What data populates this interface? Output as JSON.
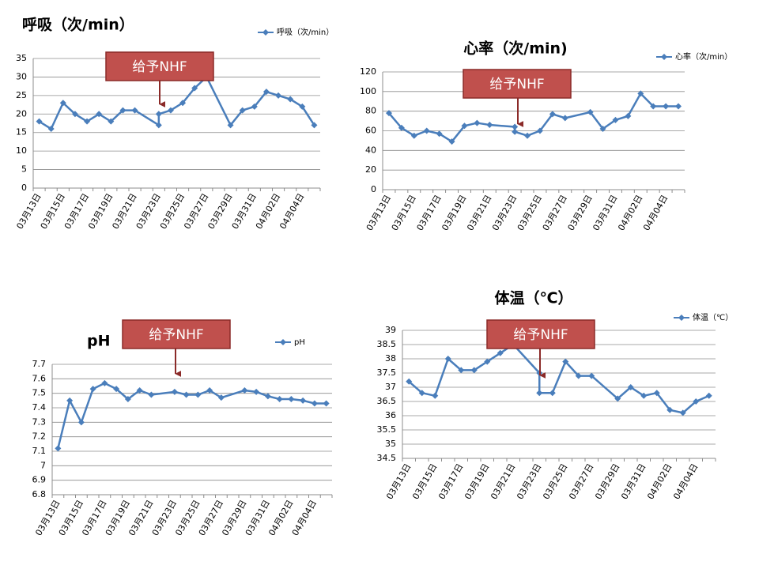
{
  "chart_data": [
    {
      "type": "line",
      "title": "呼吸（次/min）",
      "annotation": "给予NHF",
      "x": [
        "03月13日",
        "03月14日",
        "03月15日",
        "03月16日",
        "03月17日",
        "03月18日",
        "03月19日",
        "03月20日",
        "03月21日",
        "03月23日",
        "03月23日",
        "03月24日",
        "03月25日",
        "03月26日",
        "03月27日",
        "03月29日",
        "03月30日",
        "03月31日",
        "04月01日",
        "04月02日",
        "04月03日",
        "04月04日",
        "04月05日"
      ],
      "xlim": [
        "03月13日",
        "04月05日"
      ],
      "xticks": [
        "03月13日",
        "03月15日",
        "03月17日",
        "03月19日",
        "03月21日",
        "03月23日",
        "03月25日",
        "03月27日",
        "03月29日",
        "03月31日",
        "04月02日",
        "04月04日"
      ],
      "series": [
        {
          "name": "呼吸（次/min）",
          "color": "#4a7ebb",
          "values": [
            18,
            16,
            23,
            20,
            18,
            20,
            18,
            21,
            21,
            17,
            20,
            21,
            23,
            27,
            30,
            17,
            21,
            22,
            26,
            25,
            24,
            22,
            17
          ]
        }
      ],
      "ylim": [
        0,
        35
      ],
      "yticks": [
        0,
        5,
        10,
        15,
        20,
        25,
        30,
        35
      ],
      "grid": true,
      "legend": "top-right"
    },
    {
      "type": "line",
      "title": "心率（次/min)",
      "annotation": "给予NHF",
      "x": [
        "03月13日",
        "03月14日",
        "03月15日",
        "03月16日",
        "03月17日",
        "03月18日",
        "03月19日",
        "03月20日",
        "03月21日",
        "03月23日",
        "03月23日",
        "03月24日",
        "03月25日",
        "03月26日",
        "03月27日",
        "03月29日",
        "03月30日",
        "03月31日",
        "04月01日",
        "04月02日",
        "04月03日",
        "04月04日",
        "04月05日"
      ],
      "xlim": [
        "03月13日",
        "04月05日"
      ],
      "xticks": [
        "03月13日",
        "03月15日",
        "03月17日",
        "03月19日",
        "03月21日",
        "03月23日",
        "03月25日",
        "03月27日",
        "03月29日",
        "03月31日",
        "04月02日",
        "04月04日"
      ],
      "series": [
        {
          "name": "心率（次/min）",
          "color": "#4a7ebb",
          "values": [
            78,
            63,
            55,
            60,
            57,
            49,
            65,
            68,
            66,
            64,
            59,
            55,
            60,
            77,
            73,
            79,
            62,
            71,
            75,
            98,
            85,
            85,
            85
          ]
        }
      ],
      "ylim": [
        0,
        120
      ],
      "yticks": [
        0,
        20,
        40,
        60,
        80,
        100,
        120
      ],
      "grid": true,
      "legend": "top-right"
    },
    {
      "type": "line",
      "title": "pH",
      "annotation": "给予NHF",
      "x": [
        "03月13日",
        "03月14日",
        "03月15日",
        "03月16日",
        "03月17日",
        "03月18日",
        "03月19日",
        "03月20日",
        "03月21日",
        "03月23日",
        "03月24日",
        "03月25日",
        "03月26日",
        "03月27日",
        "03月29日",
        "03月30日",
        "03月31日",
        "04月01日",
        "04月02日",
        "04月03日",
        "04月04日",
        "04月05日"
      ],
      "xlim": [
        "03月13日",
        "04月05日"
      ],
      "xticks": [
        "03月13日",
        "03月15日",
        "03月17日",
        "03月19日",
        "03月21日",
        "03月23日",
        "03月25日",
        "03月27日",
        "03月29日",
        "03月31日",
        "04月02日",
        "04月04日"
      ],
      "series": [
        {
          "name": "pH",
          "color": "#4a7ebb",
          "values": [
            7.12,
            7.45,
            7.3,
            7.53,
            7.57,
            7.53,
            7.46,
            7.52,
            7.49,
            7.51,
            7.49,
            7.49,
            7.52,
            7.47,
            7.52,
            7.51,
            7.48,
            7.46,
            7.46,
            7.45,
            7.43,
            7.43
          ]
        }
      ],
      "ylim": [
        6.8,
        7.7
      ],
      "yticks": [
        6.8,
        6.9,
        7,
        7.1,
        7.2,
        7.3,
        7.4,
        7.5,
        7.6,
        7.7
      ],
      "grid": true,
      "legend": "top-right"
    },
    {
      "type": "line",
      "title": "体温（℃）",
      "annotation": "给予NHF",
      "x": [
        "03月13日",
        "03月14日",
        "03月15日",
        "03月16日",
        "03月17日",
        "03月18日",
        "03月19日",
        "03月20日",
        "03月21日",
        "03月23日",
        "03月23日",
        "03月24日",
        "03月25日",
        "03月26日",
        "03月27日",
        "03月29日",
        "03月30日",
        "03月31日",
        "04月01日",
        "04月02日",
        "04月03日",
        "04月04日",
        "04月05日"
      ],
      "xlim": [
        "03月13日",
        "04月05日"
      ],
      "xticks": [
        "03月13日",
        "03月15日",
        "03月17日",
        "03月19日",
        "03月21日",
        "03月23日",
        "03月25日",
        "03月27日",
        "03月29日",
        "03月31日",
        "04月02日",
        "04月04日"
      ],
      "series": [
        {
          "name": "体温（℃）",
          "color": "#4a7ebb",
          "values": [
            37.2,
            36.8,
            36.7,
            38.0,
            37.6,
            37.6,
            37.9,
            38.2,
            38.5,
            37.5,
            36.8,
            36.8,
            37.9,
            37.4,
            37.4,
            36.6,
            37.0,
            36.7,
            36.8,
            36.2,
            36.1,
            36.5,
            36.7
          ]
        }
      ],
      "ylim": [
        34.5,
        39
      ],
      "yticks": [
        34.5,
        35,
        35.5,
        36,
        36.5,
        37,
        37.5,
        38,
        38.5,
        39
      ],
      "grid": true,
      "legend": "top-right"
    }
  ]
}
